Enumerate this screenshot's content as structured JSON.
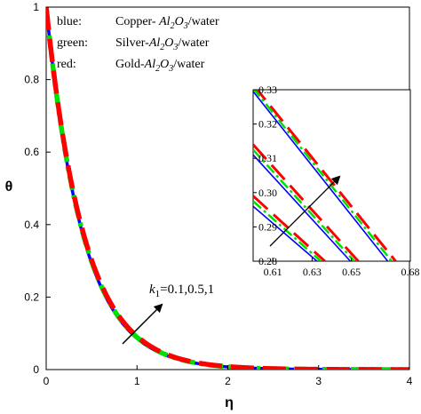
{
  "chart_data": {
    "type": "line",
    "title": "",
    "xlabel": "η",
    "ylabel": "θ",
    "xlim": [
      0,
      4
    ],
    "ylim": [
      0,
      1
    ],
    "x_ticks": [
      "0",
      "1",
      "2",
      "3",
      "4"
    ],
    "y_ticks": [
      "0",
      "0.2",
      "0.4",
      "0.6",
      "0.8",
      "1"
    ],
    "legend": {
      "placement": "top-left",
      "entries": [
        {
          "key": "blue:",
          "pre": "Copper- ",
          "sym": "Al",
          "sub1": "2",
          "mid": "O",
          "sub2": "3",
          "post": "/water",
          "color": "#0000ff"
        },
        {
          "key": "green:",
          "pre": "Silver-",
          "sym": "Al",
          "sub1": "2",
          "mid": "O",
          "sub2": "3",
          "post": "/water",
          "color": "#00e000"
        },
        {
          "key": "red:",
          "pre": "Gold-",
          "sym": "Al",
          "sub1": "2",
          "mid": "O",
          "sub2": "3",
          "post": "/water",
          "color": "#ff0000"
        }
      ]
    },
    "annotation": {
      "k": "k",
      "sub": "1",
      "text": "=0.1,0.5,1"
    },
    "series": [
      {
        "color": "#0000ff",
        "decay": 2.45
      },
      {
        "color": "#00e000",
        "decay": 2.42
      },
      {
        "color": "#ff0000",
        "decay": 2.39
      }
    ],
    "inset": {
      "xlim": [
        0.6,
        0.68
      ],
      "ylim": [
        0.28,
        0.33
      ],
      "x_ticks": [
        "0.61",
        "0.63",
        "0.65",
        "0.68"
      ],
      "y_ticks": [
        "0.28",
        "0.29",
        "0.30",
        "0.31",
        "0.32",
        "0.33"
      ],
      "groups": [
        {
          "blue": [
            [
              0.6,
              0.296
            ],
            [
              0.6325,
              0.28
            ]
          ],
          "green": [
            [
              0.6,
              0.2975
            ],
            [
              0.6345,
              0.28
            ]
          ],
          "red": [
            [
              0.6,
              0.299
            ],
            [
              0.6365,
              0.28
            ]
          ]
        },
        {
          "blue": [
            [
              0.6,
              0.311
            ],
            [
              0.6495,
              0.28
            ]
          ],
          "green": [
            [
              0.6,
              0.3125
            ],
            [
              0.6515,
              0.28
            ]
          ],
          "red": [
            [
              0.6,
              0.314
            ],
            [
              0.6535,
              0.28
            ]
          ]
        },
        {
          "blue": [
            [
              0.6,
              0.3295
            ],
            [
              0.6685,
              0.28
            ]
          ],
          "green": [
            [
              0.6,
              0.3305
            ],
            [
              0.6705,
              0.28
            ]
          ],
          "red": [
            [
              0.6,
              0.3315
            ],
            [
              0.6725,
              0.28
            ]
          ]
        }
      ]
    }
  }
}
